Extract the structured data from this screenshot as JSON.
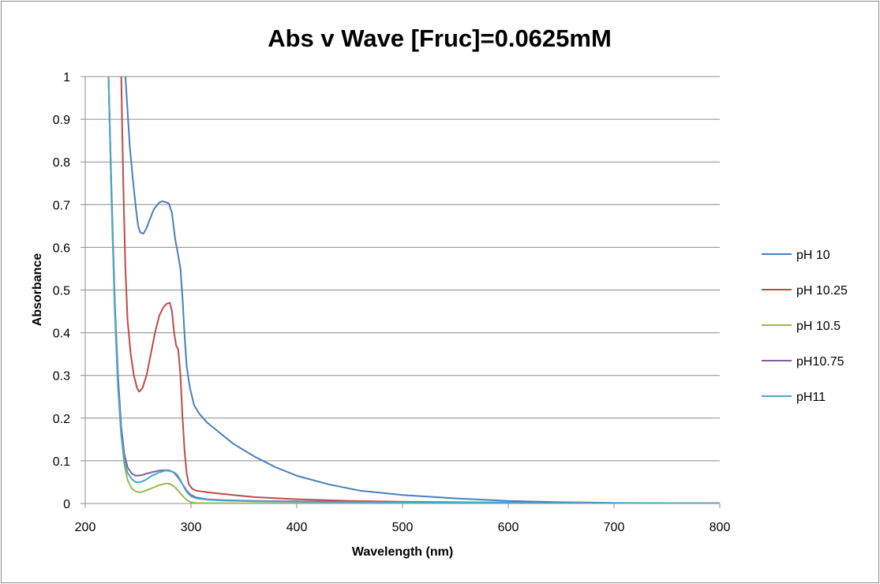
{
  "chart_data": {
    "type": "line",
    "title": "Abs v Wave [Fruc]=0.0625mM",
    "xlabel": "Wavelength (nm)",
    "ylabel": "Absorbance",
    "xlim": [
      200,
      800
    ],
    "ylim": [
      0,
      1
    ],
    "x_ticks": [
      200,
      300,
      400,
      500,
      600,
      700,
      800
    ],
    "y_ticks": [
      0,
      0.1,
      0.2,
      0.3,
      0.4,
      0.5,
      0.6,
      0.7,
      0.8,
      0.9,
      1
    ],
    "grid": "horizontal",
    "legend_position": "right",
    "series": [
      {
        "name": "pH 10",
        "color": "#4a7ebb",
        "points": [
          [
            238,
            1.0
          ],
          [
            240,
            0.92
          ],
          [
            242,
            0.84
          ],
          [
            245,
            0.76
          ],
          [
            248,
            0.69
          ],
          [
            250,
            0.65
          ],
          [
            252,
            0.635
          ],
          [
            255,
            0.632
          ],
          [
            258,
            0.645
          ],
          [
            261,
            0.665
          ],
          [
            265,
            0.69
          ],
          [
            270,
            0.705
          ],
          [
            273,
            0.708
          ],
          [
            276,
            0.706
          ],
          [
            279,
            0.703
          ],
          [
            282,
            0.68
          ],
          [
            285,
            0.62
          ],
          [
            288,
            0.58
          ],
          [
            290,
            0.55
          ],
          [
            292,
            0.48
          ],
          [
            294,
            0.39
          ],
          [
            296,
            0.32
          ],
          [
            299,
            0.27
          ],
          [
            303,
            0.23
          ],
          [
            308,
            0.21
          ],
          [
            315,
            0.19
          ],
          [
            325,
            0.17
          ],
          [
            340,
            0.14
          ],
          [
            360,
            0.11
          ],
          [
            380,
            0.085
          ],
          [
            400,
            0.065
          ],
          [
            430,
            0.045
          ],
          [
            460,
            0.03
          ],
          [
            500,
            0.02
          ],
          [
            550,
            0.012
          ],
          [
            600,
            0.006
          ],
          [
            650,
            0.003
          ],
          [
            700,
            0.0015
          ],
          [
            750,
            0.001
          ],
          [
            800,
            0.0005
          ]
        ]
      },
      {
        "name": "pH 10.25",
        "color": "#be4b48",
        "points": [
          [
            234,
            1.0
          ],
          [
            236,
            0.75
          ],
          [
            238,
            0.55
          ],
          [
            240,
            0.43
          ],
          [
            243,
            0.35
          ],
          [
            246,
            0.3
          ],
          [
            249,
            0.27
          ],
          [
            251,
            0.262
          ],
          [
            254,
            0.27
          ],
          [
            258,
            0.3
          ],
          [
            262,
            0.35
          ],
          [
            266,
            0.4
          ],
          [
            270,
            0.44
          ],
          [
            274,
            0.46
          ],
          [
            277,
            0.468
          ],
          [
            280,
            0.47
          ],
          [
            282,
            0.45
          ],
          [
            284,
            0.4
          ],
          [
            286,
            0.37
          ],
          [
            288,
            0.36
          ],
          [
            290,
            0.3
          ],
          [
            292,
            0.2
          ],
          [
            294,
            0.12
          ],
          [
            296,
            0.07
          ],
          [
            298,
            0.045
          ],
          [
            301,
            0.035
          ],
          [
            305,
            0.03
          ],
          [
            320,
            0.025
          ],
          [
            340,
            0.02
          ],
          [
            360,
            0.015
          ],
          [
            400,
            0.01
          ],
          [
            450,
            0.006
          ],
          [
            500,
            0.004
          ],
          [
            600,
            0.002
          ],
          [
            700,
            0.001
          ],
          [
            800,
            0.0005
          ]
        ]
      },
      {
        "name": "pH 10.5",
        "color": "#98b954",
        "points": [
          [
            222,
            1.0
          ],
          [
            225,
            0.7
          ],
          [
            228,
            0.45
          ],
          [
            231,
            0.28
          ],
          [
            234,
            0.16
          ],
          [
            237,
            0.09
          ],
          [
            240,
            0.055
          ],
          [
            244,
            0.035
          ],
          [
            248,
            0.028
          ],
          [
            252,
            0.026
          ],
          [
            257,
            0.03
          ],
          [
            263,
            0.036
          ],
          [
            270,
            0.043
          ],
          [
            276,
            0.047
          ],
          [
            280,
            0.046
          ],
          [
            284,
            0.04
          ],
          [
            288,
            0.03
          ],
          [
            292,
            0.018
          ],
          [
            296,
            0.008
          ],
          [
            300,
            0.003
          ],
          [
            305,
            0.001
          ],
          [
            350,
            0.0005
          ],
          [
            400,
            0.0003
          ],
          [
            500,
            0.0002
          ],
          [
            600,
            0.0001
          ],
          [
            800,
            0.0
          ]
        ]
      },
      {
        "name": "pH10.75",
        "color": "#7d60a0",
        "points": [
          [
            222,
            1.0
          ],
          [
            225,
            0.72
          ],
          [
            228,
            0.47
          ],
          [
            231,
            0.3
          ],
          [
            234,
            0.18
          ],
          [
            237,
            0.115
          ],
          [
            240,
            0.085
          ],
          [
            244,
            0.07
          ],
          [
            248,
            0.065
          ],
          [
            253,
            0.066
          ],
          [
            258,
            0.07
          ],
          [
            264,
            0.074
          ],
          [
            270,
            0.077
          ],
          [
            276,
            0.078
          ],
          [
            280,
            0.077
          ],
          [
            284,
            0.072
          ],
          [
            288,
            0.06
          ],
          [
            292,
            0.045
          ],
          [
            296,
            0.03
          ],
          [
            300,
            0.02
          ],
          [
            305,
            0.014
          ],
          [
            315,
            0.01
          ],
          [
            330,
            0.008
          ],
          [
            360,
            0.006
          ],
          [
            400,
            0.005
          ],
          [
            450,
            0.004
          ],
          [
            500,
            0.003
          ],
          [
            600,
            0.002
          ],
          [
            700,
            0.001
          ],
          [
            800,
            0.0005
          ]
        ]
      },
      {
        "name": "pH11",
        "color": "#46aac5",
        "points": [
          [
            222,
            1.0
          ],
          [
            225,
            0.7
          ],
          [
            228,
            0.45
          ],
          [
            231,
            0.27
          ],
          [
            234,
            0.16
          ],
          [
            237,
            0.1
          ],
          [
            240,
            0.072
          ],
          [
            244,
            0.057
          ],
          [
            248,
            0.05
          ],
          [
            252,
            0.05
          ],
          [
            257,
            0.055
          ],
          [
            263,
            0.065
          ],
          [
            270,
            0.073
          ],
          [
            276,
            0.077
          ],
          [
            280,
            0.076
          ],
          [
            284,
            0.073
          ],
          [
            287,
            0.067
          ],
          [
            290,
            0.055
          ],
          [
            293,
            0.04
          ],
          [
            296,
            0.027
          ],
          [
            300,
            0.017
          ],
          [
            305,
            0.012
          ],
          [
            315,
            0.009
          ],
          [
            330,
            0.007
          ],
          [
            360,
            0.005
          ],
          [
            400,
            0.004
          ],
          [
            450,
            0.003
          ],
          [
            500,
            0.0025
          ],
          [
            600,
            0.0015
          ],
          [
            700,
            0.001
          ],
          [
            800,
            0.0005
          ]
        ]
      }
    ]
  }
}
